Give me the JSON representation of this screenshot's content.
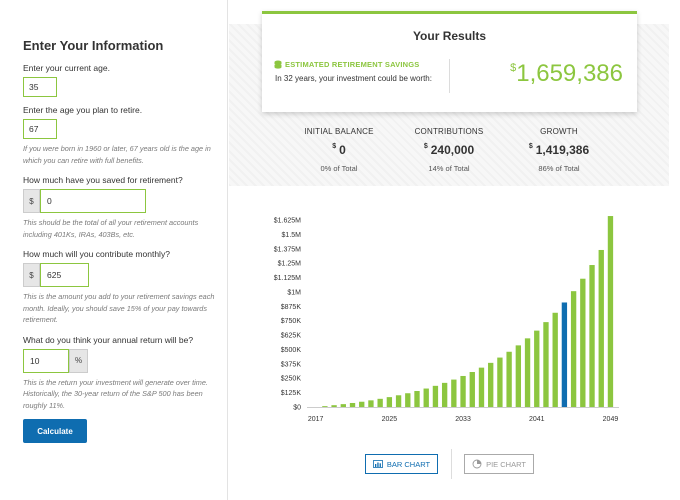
{
  "form": {
    "title": "Enter Your Information",
    "current_age_label": "Enter your current age.",
    "current_age_value": "35",
    "retire_age_label": "Enter the age you plan to retire.",
    "retire_age_value": "67",
    "retire_age_hint": "If you were born in 1960 or later, 67 years old is the age in which you can retire with full benefits.",
    "saved_label": "How much have you saved for retirement?",
    "saved_prefix": "$",
    "saved_value": "0",
    "saved_hint": "This should be the total of all your retirement accounts including 401Ks, IRAs, 403Bs, etc.",
    "monthly_label": "How much will you contribute monthly?",
    "monthly_prefix": "$",
    "monthly_value": "625",
    "monthly_hint": "This is the amount you add to your retirement savings each month. Ideally, you should save 15% of your pay towards retirement.",
    "return_label": "What do you think your annual return will be?",
    "return_value": "10",
    "return_suffix": "%",
    "return_hint": "This is the return your investment will generate over time. Historically, the 30-year return of the S&P 500 has been roughly 11%.",
    "calculate_label": "Calculate"
  },
  "results": {
    "title": "Your Results",
    "savings_label": "ESTIMATED RETIREMENT SAVINGS",
    "savings_desc": "In 32 years, your investment could be worth:",
    "amount_symbol": "$",
    "amount": "1,659,386",
    "stats": [
      {
        "header": "INITIAL BALANCE",
        "symbol": "$",
        "value": "0",
        "pct": "0% of Total"
      },
      {
        "header": "CONTRIBUTIONS",
        "symbol": "$",
        "value": "240,000",
        "pct": "14% of Total"
      },
      {
        "header": "GROWTH",
        "symbol": "$",
        "value": "1,419,386",
        "pct": "86% of Total"
      }
    ]
  },
  "buttons": {
    "bar_chart": "BAR CHART",
    "pie_chart": "PIE CHART"
  },
  "colors": {
    "accent_green": "#8cc63f",
    "accent_blue": "#0f6db0"
  },
  "chart_data": {
    "type": "bar",
    "x_ticks": [
      "2017",
      "2025",
      "2033",
      "2041",
      "2049"
    ],
    "y_ticks": [
      "$1.625M",
      "$1.5M",
      "$1.375M",
      "$1.25M",
      "$1.125M",
      "$1M",
      "$875K",
      "$750K",
      "$625K",
      "$500K",
      "$375K",
      "$250K",
      "$125K",
      "$0"
    ],
    "ylim": [
      0,
      1625000
    ],
    "categories": [
      "2017",
      "2018",
      "2019",
      "2020",
      "2021",
      "2022",
      "2023",
      "2024",
      "2025",
      "2026",
      "2027",
      "2028",
      "2029",
      "2030",
      "2031",
      "2032",
      "2033",
      "2034",
      "2035",
      "2036",
      "2037",
      "2038",
      "2039",
      "2040",
      "2041",
      "2042",
      "2043",
      "2044",
      "2045",
      "2046",
      "2047",
      "2048",
      "2049"
    ],
    "values": [
      0,
      7500,
      15750,
      24825,
      34808,
      45788,
      57867,
      71154,
      85769,
      101846,
      119531,
      138984,
      160382,
      183921,
      209813,
      238294,
      269624,
      304086,
      341995,
      383694,
      429564,
      480020,
      535522,
      596574,
      663732,
      737605,
      818866,
      908252,
      1006578,
      1114735,
      1233709,
      1364580,
      1659386
    ],
    "highlight_index": 27,
    "bar_color": "#8cc63f",
    "highlight_color": "#0f6db0"
  }
}
